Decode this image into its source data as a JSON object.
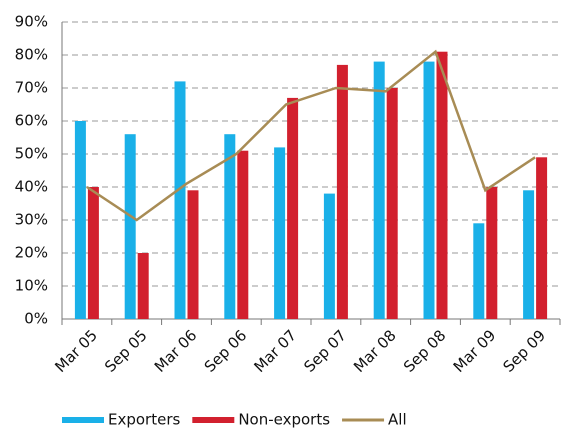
{
  "chart_data": {
    "type": "bar",
    "categories": [
      "Mar 05",
      "Sep 05",
      "Mar 06",
      "Sep 06",
      "Mar 07",
      "Sep 07",
      "Mar 08",
      "Sep 08",
      "Mar 09",
      "Sep 09"
    ],
    "series": [
      {
        "name": "Exporters",
        "color": "#1ab0e8",
        "type": "bar",
        "values": [
          60,
          56,
          72,
          56,
          52,
          38,
          78,
          78,
          29,
          39
        ]
      },
      {
        "name": "Non-exports",
        "color": "#d2202e",
        "type": "bar",
        "values": [
          40,
          20,
          39,
          51,
          67,
          77,
          70,
          81,
          40,
          49
        ]
      },
      {
        "name": "All",
        "color": "#a88c55",
        "type": "line",
        "values": [
          40,
          30,
          41,
          50,
          65,
          70,
          69,
          81,
          39,
          49
        ]
      }
    ],
    "ylim": [
      0,
      90
    ],
    "yticks": [
      {
        "value": 0,
        "label": "0%"
      },
      {
        "value": 10,
        "label": "10%"
      },
      {
        "value": 20,
        "label": "20%"
      },
      {
        "value": 30,
        "label": "30%"
      },
      {
        "value": 40,
        "label": "40%"
      },
      {
        "value": 50,
        "label": "50%"
      },
      {
        "value": 60,
        "label": "60%"
      },
      {
        "value": 70,
        "label": "70%"
      },
      {
        "value": 80,
        "label": "80%"
      },
      {
        "value": 90,
        "label": "90%"
      }
    ],
    "grid": true,
    "legend": "bottom"
  }
}
